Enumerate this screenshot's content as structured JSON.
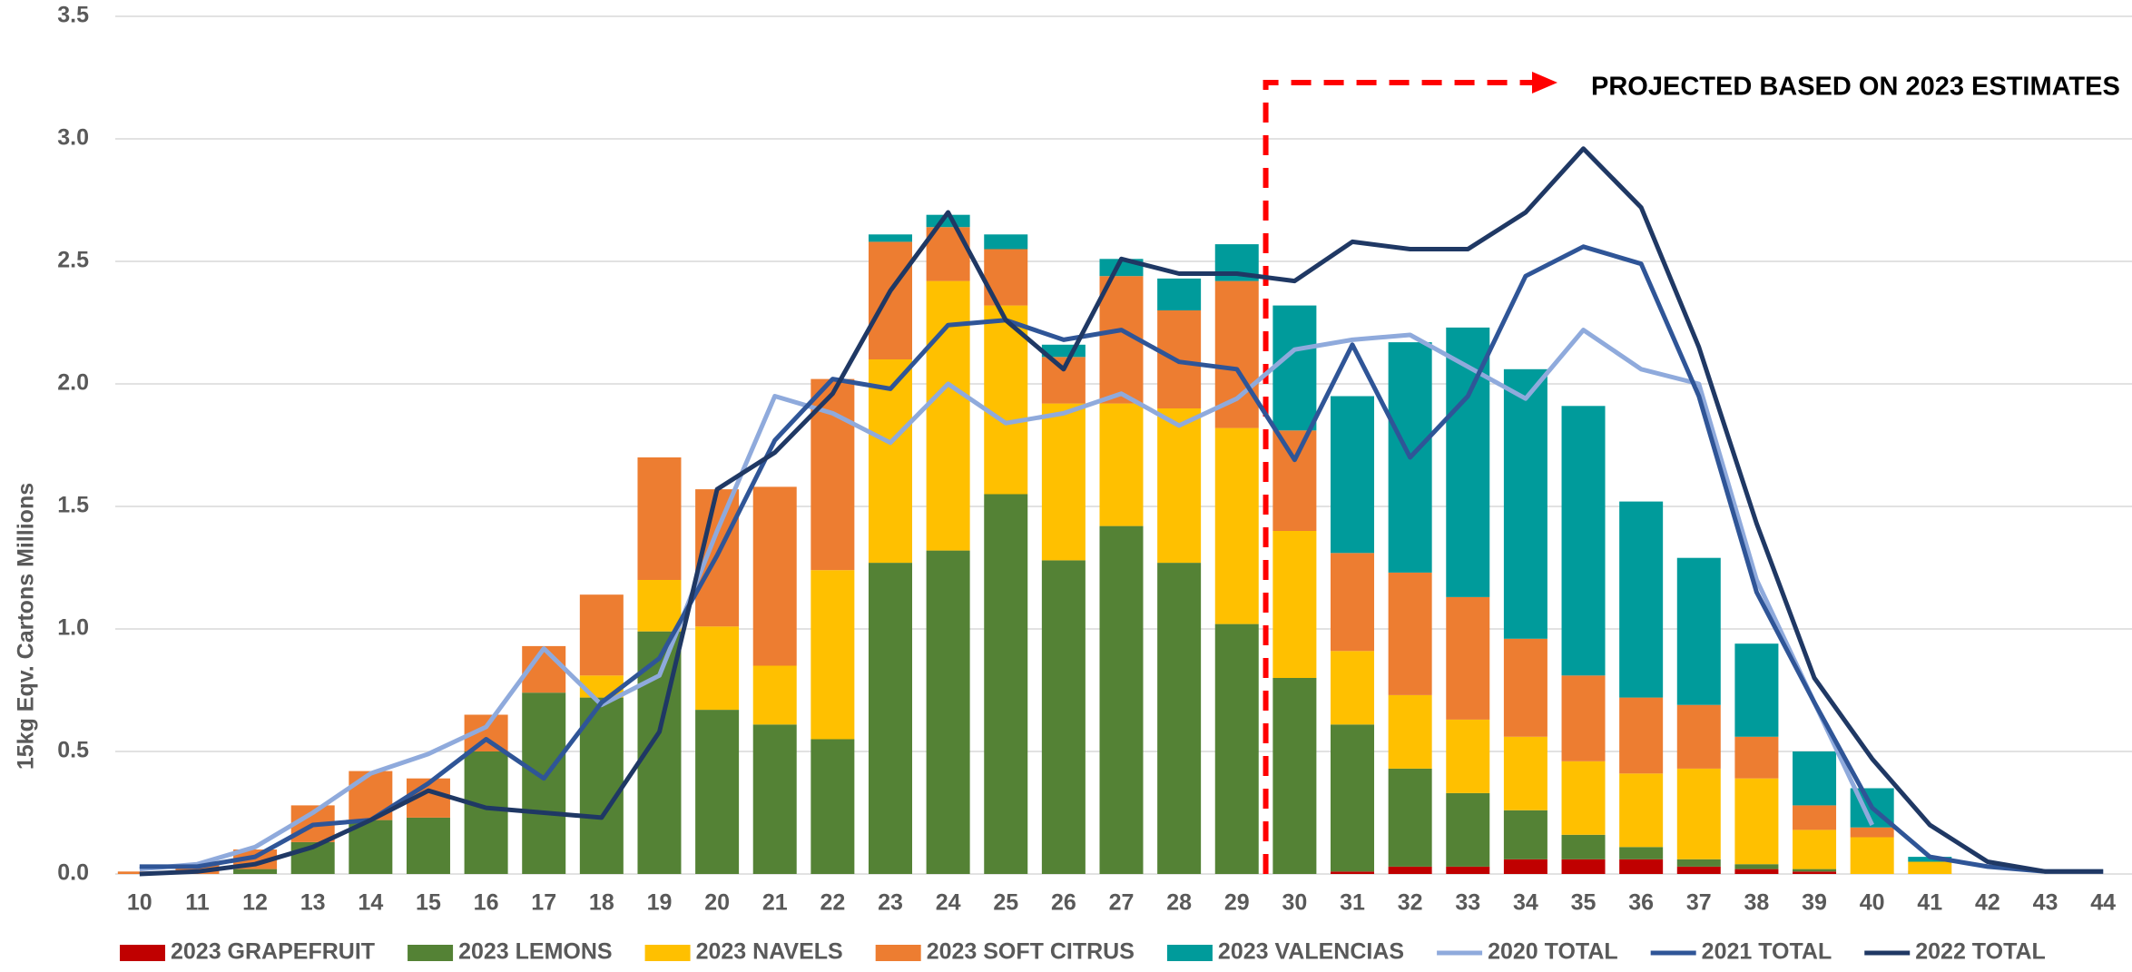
{
  "chart_data": {
    "type": "bar",
    "stacked": true,
    "ylabel": "15kg Eqv. Cartons Millions",
    "annotation": "PROJECTED BASED ON 2023 ESTIMATES",
    "categories": [
      "10",
      "11",
      "12",
      "13",
      "14",
      "15",
      "16",
      "17",
      "18",
      "19",
      "20",
      "21",
      "22",
      "23",
      "24",
      "25",
      "26",
      "27",
      "28",
      "29",
      "30",
      "31",
      "32",
      "33",
      "34",
      "35",
      "36",
      "37",
      "38",
      "39",
      "40",
      "41",
      "42",
      "43",
      "44"
    ],
    "ylim": [
      0,
      3.5
    ],
    "yticks": [
      {
        "value": 0,
        "label": "0.0"
      },
      0.5,
      {
        "value": 1,
        "label": "1.0"
      },
      1.5,
      {
        "value": 2,
        "label": "2.0"
      },
      2.5,
      {
        "value": 3,
        "label": "3.0"
      },
      3.5
    ],
    "grid": true,
    "series": [
      {
        "name": "2023 GRAPEFRUIT",
        "type": "bar",
        "color": "#c00000",
        "values": [
          0,
          0,
          0,
          0,
          0,
          0,
          0,
          0,
          0,
          0,
          0,
          0,
          0,
          0,
          0,
          0,
          0,
          0,
          0,
          0,
          0,
          0.01,
          0.03,
          0.03,
          0.06,
          0.06,
          0.06,
          0.03,
          0.02,
          0.01,
          0,
          0,
          0,
          0,
          0
        ]
      },
      {
        "name": "2023 LEMONS",
        "type": "bar",
        "color": "#548235",
        "values": [
          0,
          0,
          0.02,
          0.13,
          0.22,
          0.23,
          0.5,
          0.74,
          0.72,
          0.99,
          0.67,
          0.61,
          0.55,
          1.27,
          1.32,
          1.55,
          1.28,
          1.42,
          1.27,
          1.02,
          0.8,
          0.6,
          0.4,
          0.3,
          0.2,
          0.1,
          0.05,
          0.03,
          0.02,
          0.01,
          0,
          0,
          0,
          0,
          0
        ]
      },
      {
        "name": "2023 NAVELS",
        "type": "bar",
        "color": "#ffc000",
        "values": [
          0,
          0,
          0,
          0,
          0,
          0,
          0,
          0,
          0.09,
          0.21,
          0.34,
          0.24,
          0.69,
          0.83,
          1.1,
          0.77,
          0.64,
          0.5,
          0.63,
          0.8,
          0.6,
          0.3,
          0.3,
          0.3,
          0.3,
          0.3,
          0.3,
          0.37,
          0.35,
          0.16,
          0.15,
          0.05,
          0,
          0,
          0
        ]
      },
      {
        "name": "2023 SOFT CITRUS",
        "type": "bar",
        "color": "#ed7d31",
        "values": [
          0.01,
          0.04,
          0.08,
          0.15,
          0.2,
          0.16,
          0.15,
          0.19,
          0.33,
          0.5,
          0.56,
          0.73,
          0.78,
          0.48,
          0.22,
          0.23,
          0.19,
          0.52,
          0.4,
          0.6,
          0.41,
          0.4,
          0.5,
          0.5,
          0.4,
          0.35,
          0.31,
          0.26,
          0.17,
          0.1,
          0.04,
          0,
          0,
          0,
          0
        ]
      },
      {
        "name": "2023 VALENCIAS",
        "type": "bar",
        "color": "#009b9b",
        "values": [
          0,
          0,
          0,
          0,
          0,
          0,
          0,
          0,
          0,
          0,
          0,
          0,
          0,
          0.03,
          0.05,
          0.06,
          0.05,
          0.07,
          0.13,
          0.15,
          0.51,
          0.64,
          0.94,
          1.1,
          1.1,
          1.1,
          0.8,
          0.6,
          0.38,
          0.22,
          0.16,
          0.02,
          0,
          0,
          0
        ]
      },
      {
        "name": "2020 TOTAL",
        "type": "line",
        "color": "#8faadc",
        "values": [
          0.02,
          0.04,
          0.11,
          0.25,
          0.41,
          0.49,
          0.6,
          0.92,
          0.69,
          0.81,
          1.4,
          1.95,
          1.88,
          1.76,
          2.0,
          1.84,
          1.88,
          1.96,
          1.83,
          1.94,
          2.14,
          2.18,
          2.2,
          2.07,
          1.94,
          2.22,
          2.06,
          2.0,
          1.2,
          0.7,
          0.2,
          null,
          null,
          null,
          null
        ]
      },
      {
        "name": "2021 TOTAL",
        "type": "line",
        "color": "#2f5597",
        "values": [
          0.03,
          0.03,
          0.07,
          0.2,
          0.22,
          0.37,
          0.55,
          0.39,
          0.7,
          0.88,
          1.3,
          1.77,
          2.02,
          1.98,
          2.24,
          2.26,
          2.18,
          2.22,
          2.09,
          2.06,
          1.69,
          2.16,
          1.7,
          1.95,
          2.44,
          2.56,
          2.49,
          1.95,
          1.15,
          0.7,
          0.27,
          0.07,
          0.03,
          0.01,
          0.01
        ]
      },
      {
        "name": "2022 TOTAL",
        "type": "line",
        "color": "#1f3864",
        "values": [
          0,
          0.01,
          0.04,
          0.11,
          0.22,
          0.34,
          0.27,
          0.25,
          0.23,
          0.58,
          1.57,
          1.72,
          1.96,
          2.38,
          2.7,
          2.26,
          2.06,
          2.51,
          2.45,
          2.45,
          2.42,
          2.58,
          2.55,
          2.55,
          2.7,
          2.96,
          2.72,
          2.15,
          1.43,
          0.8,
          0.47,
          0.2,
          0.05,
          0.01,
          0.01
        ]
      }
    ]
  }
}
